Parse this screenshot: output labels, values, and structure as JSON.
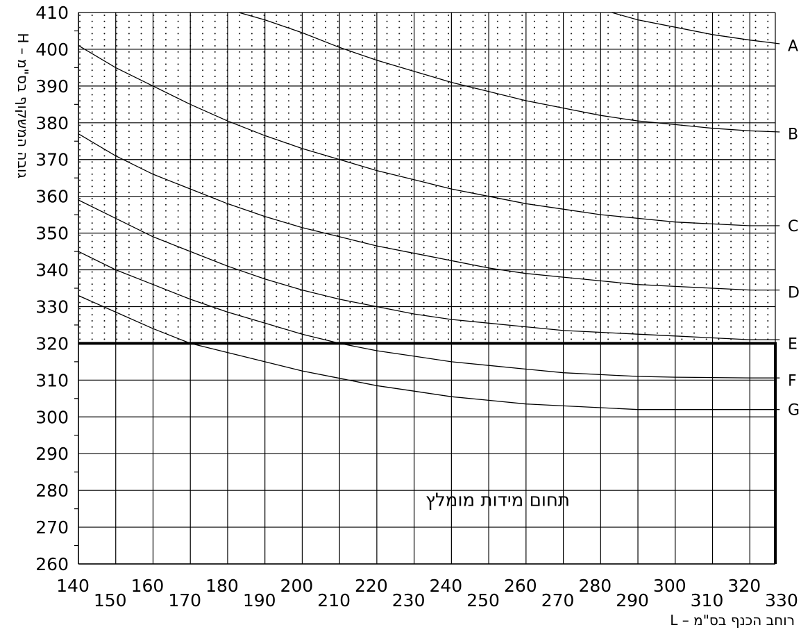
{
  "chart_data": {
    "type": "line",
    "xlabel": "L – רוחב הכנף בס\"מ",
    "ylabel": "H – גובה המשקוף בס\"מ",
    "xlim": [
      140,
      330
    ],
    "ylim": [
      260,
      410
    ],
    "x_ticks": [
      "140",
      "150",
      "160",
      "170",
      "180",
      "190",
      "200",
      "210",
      "220",
      "230",
      "240",
      "250",
      "260",
      "270",
      "280",
      "290",
      "300",
      "310",
      "320",
      "330"
    ],
    "y_ticks": [
      "260",
      "270",
      "280",
      "290",
      "300",
      "310",
      "320",
      "330",
      "340",
      "350",
      "360",
      "370",
      "380",
      "390",
      "400",
      "410"
    ],
    "grid": true,
    "recommended_threshold_y": 320,
    "recommended_region_label": "תחום מידות מומלץ",
    "colors": {
      "line": "#000000",
      "dots": "#000000",
      "background": "#ffffff"
    },
    "series": [
      {
        "name": "A",
        "label_y": 401,
        "points": [
          [
            283,
            410
          ],
          [
            290,
            408
          ],
          [
            300,
            406
          ],
          [
            310,
            404
          ],
          [
            320,
            402.5
          ],
          [
            328,
            401.5
          ]
        ]
      },
      {
        "name": "B",
        "label_y": 377,
        "points": [
          [
            183,
            410
          ],
          [
            190,
            408
          ],
          [
            200,
            404.5
          ],
          [
            210,
            400.5
          ],
          [
            220,
            397
          ],
          [
            230,
            394
          ],
          [
            240,
            391
          ],
          [
            250,
            388.5
          ],
          [
            260,
            386
          ],
          [
            270,
            384
          ],
          [
            280,
            382
          ],
          [
            290,
            380.5
          ],
          [
            300,
            379.5
          ],
          [
            310,
            378.5
          ],
          [
            320,
            377.8
          ],
          [
            328,
            377.5
          ]
        ]
      },
      {
        "name": "C",
        "label_y": 352,
        "points": [
          [
            140,
            401
          ],
          [
            150,
            395
          ],
          [
            160,
            390
          ],
          [
            170,
            385
          ],
          [
            180,
            380.5
          ],
          [
            190,
            376.5
          ],
          [
            200,
            373
          ],
          [
            210,
            370
          ],
          [
            220,
            367
          ],
          [
            230,
            364.5
          ],
          [
            240,
            362
          ],
          [
            250,
            360
          ],
          [
            260,
            358
          ],
          [
            270,
            356.5
          ],
          [
            280,
            355
          ],
          [
            290,
            354
          ],
          [
            300,
            353
          ],
          [
            310,
            352.5
          ],
          [
            320,
            352
          ],
          [
            328,
            352
          ]
        ]
      },
      {
        "name": "D",
        "label_y": 334,
        "points": [
          [
            140,
            377
          ],
          [
            150,
            371
          ],
          [
            160,
            366
          ],
          [
            170,
            362
          ],
          [
            180,
            358
          ],
          [
            190,
            354.5
          ],
          [
            200,
            351.5
          ],
          [
            210,
            349
          ],
          [
            220,
            346.5
          ],
          [
            230,
            344.5
          ],
          [
            240,
            342.5
          ],
          [
            250,
            340.5
          ],
          [
            260,
            339
          ],
          [
            270,
            338
          ],
          [
            280,
            337
          ],
          [
            290,
            336
          ],
          [
            300,
            335.5
          ],
          [
            310,
            335
          ],
          [
            320,
            334.5
          ],
          [
            328,
            334.5
          ]
        ]
      },
      {
        "name": "E",
        "label_y": 320,
        "points": [
          [
            140,
            359
          ],
          [
            150,
            354
          ],
          [
            160,
            349
          ],
          [
            170,
            345
          ],
          [
            180,
            341
          ],
          [
            190,
            337.5
          ],
          [
            200,
            334.5
          ],
          [
            210,
            332
          ],
          [
            220,
            330
          ],
          [
            230,
            328
          ],
          [
            240,
            326.5
          ],
          [
            250,
            325.5
          ],
          [
            260,
            324.5
          ],
          [
            270,
            323.5
          ],
          [
            280,
            323
          ],
          [
            290,
            322.5
          ],
          [
            300,
            322
          ],
          [
            310,
            321.5
          ],
          [
            320,
            321
          ],
          [
            328,
            321
          ]
        ]
      },
      {
        "name": "F",
        "label_y": 310,
        "points": [
          [
            140,
            345
          ],
          [
            150,
            340
          ],
          [
            160,
            336
          ],
          [
            170,
            332
          ],
          [
            180,
            328.5
          ],
          [
            190,
            325.5
          ],
          [
            200,
            322.5
          ],
          [
            210,
            320
          ],
          [
            220,
            318
          ],
          [
            230,
            316.5
          ],
          [
            240,
            315
          ],
          [
            250,
            314
          ],
          [
            260,
            313
          ],
          [
            270,
            312
          ],
          [
            280,
            311.5
          ],
          [
            290,
            311
          ],
          [
            300,
            310.8
          ],
          [
            310,
            310.7
          ],
          [
            320,
            310.6
          ],
          [
            328,
            310.6
          ]
        ]
      },
      {
        "name": "G",
        "label_y": 302,
        "points": [
          [
            140,
            333
          ],
          [
            150,
            328.5
          ],
          [
            160,
            324
          ],
          [
            170,
            320
          ],
          [
            180,
            317.5
          ],
          [
            190,
            315
          ],
          [
            200,
            312.5
          ],
          [
            210,
            310.5
          ],
          [
            220,
            308.5
          ],
          [
            230,
            307
          ],
          [
            240,
            305.5
          ],
          [
            250,
            304.5
          ],
          [
            260,
            303.5
          ],
          [
            270,
            303
          ],
          [
            280,
            302.5
          ],
          [
            290,
            302
          ],
          [
            300,
            302
          ],
          [
            310,
            302
          ],
          [
            320,
            302
          ],
          [
            328,
            302
          ]
        ]
      }
    ]
  }
}
